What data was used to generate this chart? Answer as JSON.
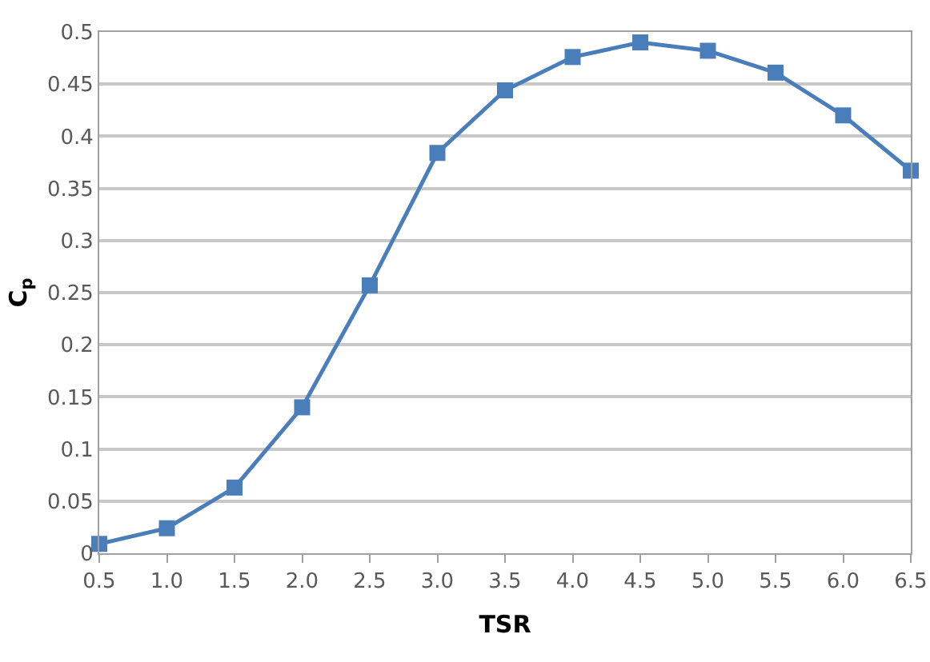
{
  "chart_data": {
    "type": "line",
    "xlabel": "TSR",
    "ylabel": "C$_{p}$",
    "x": [
      0.5,
      1.0,
      1.5,
      2.0,
      2.5,
      3.0,
      3.5,
      4.0,
      4.5,
      5.0,
      5.5,
      6.0,
      6.5
    ],
    "series": [
      {
        "color": "#4a7ebb",
        "values": [
          0.009,
          0.024,
          0.063,
          0.14,
          0.257,
          0.384,
          0.444,
          0.476,
          0.49,
          0.482,
          0.461,
          0.42,
          0.367
        ]
      }
    ],
    "xlim": [
      0.5,
      6.5
    ],
    "xticks": [
      {
        "value": 0.5,
        "label": "0.5"
      },
      {
        "value": 1,
        "label": "1.0"
      },
      {
        "value": 1.5,
        "label": "1.5"
      },
      {
        "value": 2,
        "label": "2.0"
      },
      {
        "value": 2.5,
        "label": "2.5"
      },
      {
        "value": 3,
        "label": "3.0"
      },
      {
        "value": 3.5,
        "label": "3.5"
      },
      {
        "value": 4,
        "label": "4.0"
      },
      {
        "value": 4.5,
        "label": "4.5"
      },
      {
        "value": 5,
        "label": "5.0"
      },
      {
        "value": 5.5,
        "label": "5.5"
      },
      {
        "value": 6,
        "label": "6.0"
      },
      {
        "value": 6.5,
        "label": "6.5"
      }
    ],
    "ylim": [
      0,
      0.5
    ],
    "yticks": [
      0,
      0.05,
      0.1,
      0.15,
      0.2,
      0.25,
      0.3,
      0.35,
      0.4,
      0.45,
      0.5
    ],
    "grid": "y",
    "marker": "square",
    "line_style": "solid",
    "legend": false
  }
}
